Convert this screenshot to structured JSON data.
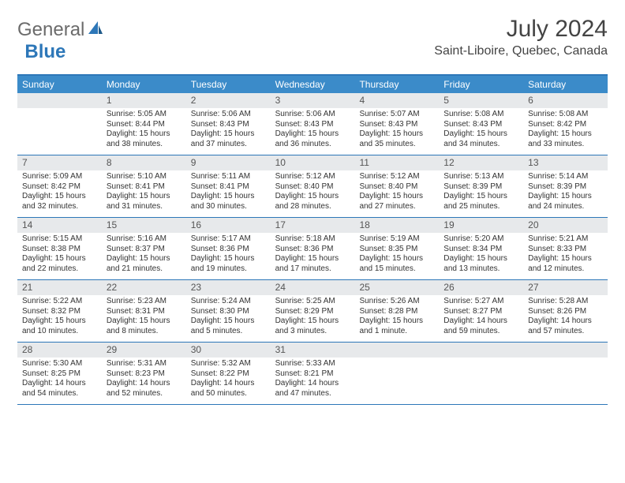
{
  "brand": {
    "general": "General",
    "blue": "Blue"
  },
  "title": "July 2024",
  "location": "Saint-Liboire, Quebec, Canada",
  "colors": {
    "header_bg": "#3b8bc9",
    "border": "#2d77b8",
    "daynum_bg": "#e7e9eb",
    "text": "#333333"
  },
  "dayHeaders": [
    "Sunday",
    "Monday",
    "Tuesday",
    "Wednesday",
    "Thursday",
    "Friday",
    "Saturday"
  ],
  "weeks": [
    [
      {
        "empty": true
      },
      {
        "n": "1",
        "sr": "Sunrise: 5:05 AM",
        "ss": "Sunset: 8:44 PM",
        "d1": "Daylight: 15 hours",
        "d2": "and 38 minutes."
      },
      {
        "n": "2",
        "sr": "Sunrise: 5:06 AM",
        "ss": "Sunset: 8:43 PM",
        "d1": "Daylight: 15 hours",
        "d2": "and 37 minutes."
      },
      {
        "n": "3",
        "sr": "Sunrise: 5:06 AM",
        "ss": "Sunset: 8:43 PM",
        "d1": "Daylight: 15 hours",
        "d2": "and 36 minutes."
      },
      {
        "n": "4",
        "sr": "Sunrise: 5:07 AM",
        "ss": "Sunset: 8:43 PM",
        "d1": "Daylight: 15 hours",
        "d2": "and 35 minutes."
      },
      {
        "n": "5",
        "sr": "Sunrise: 5:08 AM",
        "ss": "Sunset: 8:43 PM",
        "d1": "Daylight: 15 hours",
        "d2": "and 34 minutes."
      },
      {
        "n": "6",
        "sr": "Sunrise: 5:08 AM",
        "ss": "Sunset: 8:42 PM",
        "d1": "Daylight: 15 hours",
        "d2": "and 33 minutes."
      }
    ],
    [
      {
        "n": "7",
        "sr": "Sunrise: 5:09 AM",
        "ss": "Sunset: 8:42 PM",
        "d1": "Daylight: 15 hours",
        "d2": "and 32 minutes."
      },
      {
        "n": "8",
        "sr": "Sunrise: 5:10 AM",
        "ss": "Sunset: 8:41 PM",
        "d1": "Daylight: 15 hours",
        "d2": "and 31 minutes."
      },
      {
        "n": "9",
        "sr": "Sunrise: 5:11 AM",
        "ss": "Sunset: 8:41 PM",
        "d1": "Daylight: 15 hours",
        "d2": "and 30 minutes."
      },
      {
        "n": "10",
        "sr": "Sunrise: 5:12 AM",
        "ss": "Sunset: 8:40 PM",
        "d1": "Daylight: 15 hours",
        "d2": "and 28 minutes."
      },
      {
        "n": "11",
        "sr": "Sunrise: 5:12 AM",
        "ss": "Sunset: 8:40 PM",
        "d1": "Daylight: 15 hours",
        "d2": "and 27 minutes."
      },
      {
        "n": "12",
        "sr": "Sunrise: 5:13 AM",
        "ss": "Sunset: 8:39 PM",
        "d1": "Daylight: 15 hours",
        "d2": "and 25 minutes."
      },
      {
        "n": "13",
        "sr": "Sunrise: 5:14 AM",
        "ss": "Sunset: 8:39 PM",
        "d1": "Daylight: 15 hours",
        "d2": "and 24 minutes."
      }
    ],
    [
      {
        "n": "14",
        "sr": "Sunrise: 5:15 AM",
        "ss": "Sunset: 8:38 PM",
        "d1": "Daylight: 15 hours",
        "d2": "and 22 minutes."
      },
      {
        "n": "15",
        "sr": "Sunrise: 5:16 AM",
        "ss": "Sunset: 8:37 PM",
        "d1": "Daylight: 15 hours",
        "d2": "and 21 minutes."
      },
      {
        "n": "16",
        "sr": "Sunrise: 5:17 AM",
        "ss": "Sunset: 8:36 PM",
        "d1": "Daylight: 15 hours",
        "d2": "and 19 minutes."
      },
      {
        "n": "17",
        "sr": "Sunrise: 5:18 AM",
        "ss": "Sunset: 8:36 PM",
        "d1": "Daylight: 15 hours",
        "d2": "and 17 minutes."
      },
      {
        "n": "18",
        "sr": "Sunrise: 5:19 AM",
        "ss": "Sunset: 8:35 PM",
        "d1": "Daylight: 15 hours",
        "d2": "and 15 minutes."
      },
      {
        "n": "19",
        "sr": "Sunrise: 5:20 AM",
        "ss": "Sunset: 8:34 PM",
        "d1": "Daylight: 15 hours",
        "d2": "and 13 minutes."
      },
      {
        "n": "20",
        "sr": "Sunrise: 5:21 AM",
        "ss": "Sunset: 8:33 PM",
        "d1": "Daylight: 15 hours",
        "d2": "and 12 minutes."
      }
    ],
    [
      {
        "n": "21",
        "sr": "Sunrise: 5:22 AM",
        "ss": "Sunset: 8:32 PM",
        "d1": "Daylight: 15 hours",
        "d2": "and 10 minutes."
      },
      {
        "n": "22",
        "sr": "Sunrise: 5:23 AM",
        "ss": "Sunset: 8:31 PM",
        "d1": "Daylight: 15 hours",
        "d2": "and 8 minutes."
      },
      {
        "n": "23",
        "sr": "Sunrise: 5:24 AM",
        "ss": "Sunset: 8:30 PM",
        "d1": "Daylight: 15 hours",
        "d2": "and 5 minutes."
      },
      {
        "n": "24",
        "sr": "Sunrise: 5:25 AM",
        "ss": "Sunset: 8:29 PM",
        "d1": "Daylight: 15 hours",
        "d2": "and 3 minutes."
      },
      {
        "n": "25",
        "sr": "Sunrise: 5:26 AM",
        "ss": "Sunset: 8:28 PM",
        "d1": "Daylight: 15 hours",
        "d2": "and 1 minute."
      },
      {
        "n": "26",
        "sr": "Sunrise: 5:27 AM",
        "ss": "Sunset: 8:27 PM",
        "d1": "Daylight: 14 hours",
        "d2": "and 59 minutes."
      },
      {
        "n": "27",
        "sr": "Sunrise: 5:28 AM",
        "ss": "Sunset: 8:26 PM",
        "d1": "Daylight: 14 hours",
        "d2": "and 57 minutes."
      }
    ],
    [
      {
        "n": "28",
        "sr": "Sunrise: 5:30 AM",
        "ss": "Sunset: 8:25 PM",
        "d1": "Daylight: 14 hours",
        "d2": "and 54 minutes."
      },
      {
        "n": "29",
        "sr": "Sunrise: 5:31 AM",
        "ss": "Sunset: 8:23 PM",
        "d1": "Daylight: 14 hours",
        "d2": "and 52 minutes."
      },
      {
        "n": "30",
        "sr": "Sunrise: 5:32 AM",
        "ss": "Sunset: 8:22 PM",
        "d1": "Daylight: 14 hours",
        "d2": "and 50 minutes."
      },
      {
        "n": "31",
        "sr": "Sunrise: 5:33 AM",
        "ss": "Sunset: 8:21 PM",
        "d1": "Daylight: 14 hours",
        "d2": "and 47 minutes."
      },
      {
        "empty": true
      },
      {
        "empty": true
      },
      {
        "empty": true
      }
    ]
  ]
}
